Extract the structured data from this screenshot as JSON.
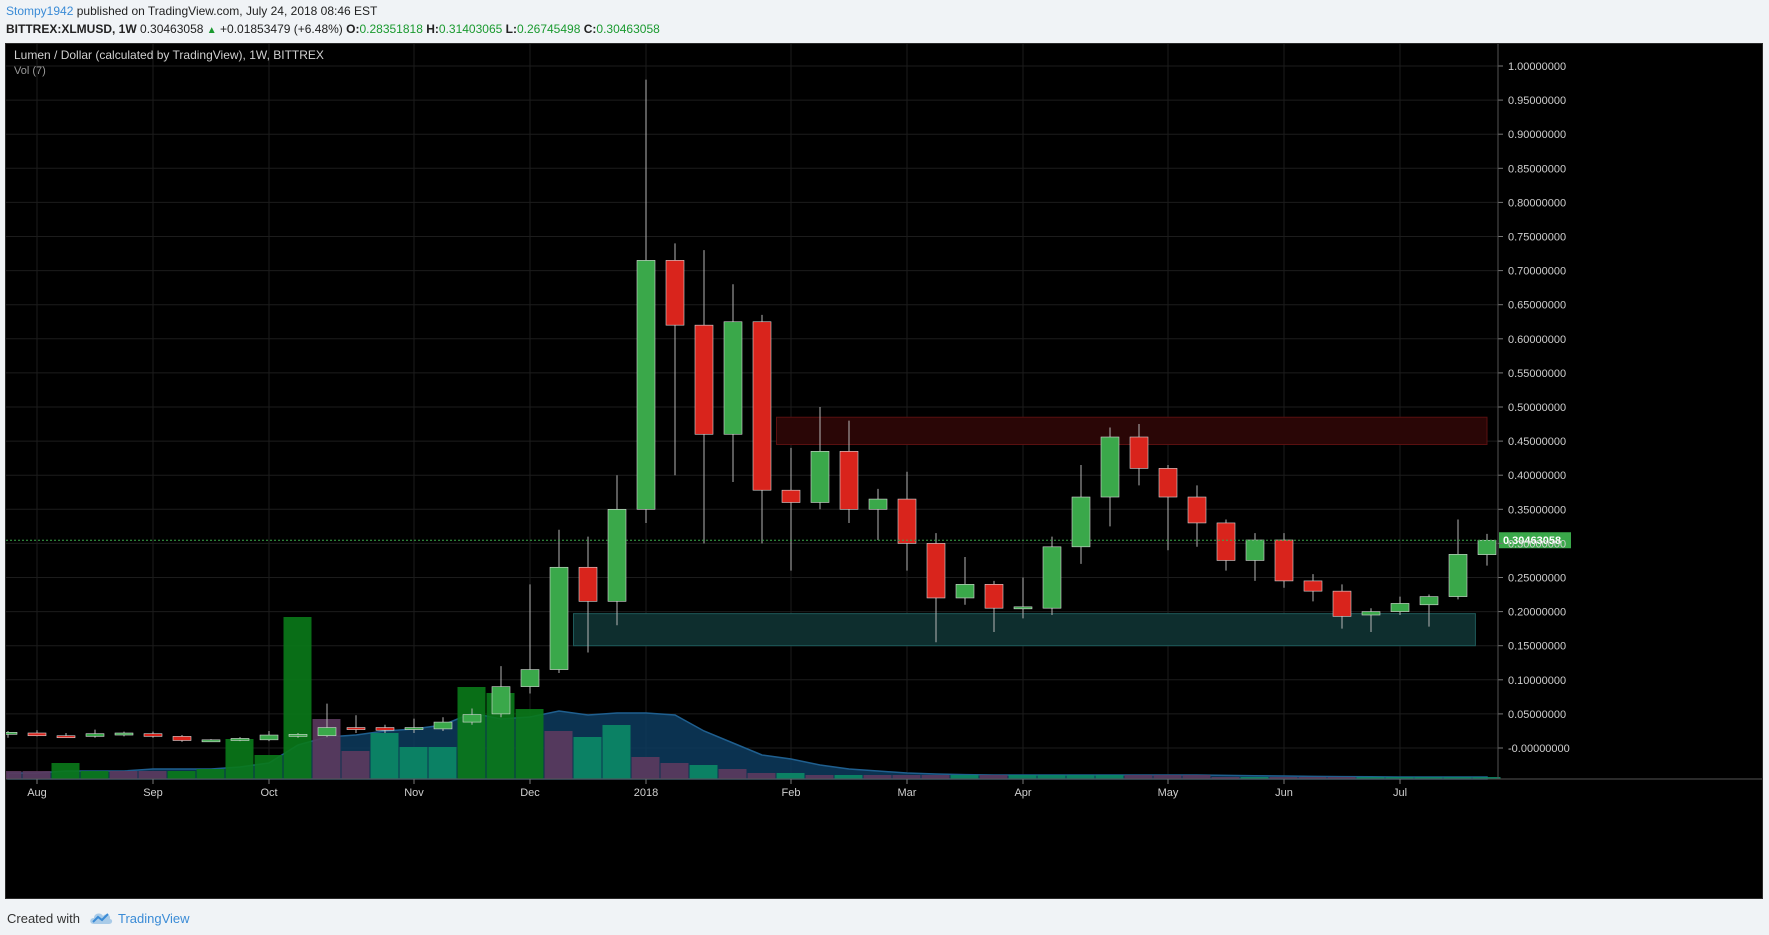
{
  "header": {
    "author": "Stompy1942",
    "published_text": "published on TradingView.com, July 24, 2018 08:46 EST",
    "symbol": "BITTREX:XLMUSD, 1W",
    "last": "0.30463058",
    "change": "+0.01853479 (+6.48%)",
    "o_label": "O:",
    "o_value": "0.28351818",
    "h_label": "H:",
    "h_value": "0.31403065",
    "l_label": "L:",
    "l_value": "0.26745498",
    "c_label": "C:",
    "c_value": "0.30463058"
  },
  "footer": {
    "created_with": "Created with",
    "brand": "TradingView"
  },
  "colors": {
    "up": "#3aa84a",
    "down": "#d9241c",
    "vol_up": "#0a7a1a",
    "vol_down": "#5c3a5e",
    "vol_teal": "#0b8a66",
    "ma_fill": "#0d3b5e",
    "support_zone": "#0e2e2e",
    "resistance_zone": "#2a0606",
    "last_price_tag": "#3aa84a"
  },
  "chart_data": {
    "type": "candlestick",
    "title": "Lumen / Dollar (calculated by TradingView), 1W, BITTREX",
    "indicator_label": "Vol (7)",
    "last_price_label": "0.30463058",
    "last_price": 0.30463058,
    "ylim": [
      -0.05,
      1.05
    ],
    "y_ticks": [
      "1.00000000",
      "0.95000000",
      "0.90000000",
      "0.85000000",
      "0.80000000",
      "0.75000000",
      "0.70000000",
      "0.65000000",
      "0.60000000",
      "0.55000000",
      "0.50000000",
      "0.45000000",
      "0.40000000",
      "0.35000000",
      "0.30000000",
      "0.25000000",
      "0.20000000",
      "0.15000000",
      "0.10000000",
      "0.05000000",
      "-0.00000000"
    ],
    "x_ticks": [
      {
        "label": "Aug",
        "week": 1
      },
      {
        "label": "Sep",
        "week": 5
      },
      {
        "label": "Oct",
        "week": 9
      },
      {
        "label": "Nov",
        "week": 14
      },
      {
        "label": "Dec",
        "week": 18
      },
      {
        "label": "2018",
        "week": 22
      },
      {
        "label": "Feb",
        "week": 27
      },
      {
        "label": "Mar",
        "week": 31
      },
      {
        "label": "Apr",
        "week": 35
      },
      {
        "label": "May",
        "week": 40
      },
      {
        "label": "Jun",
        "week": 44
      },
      {
        "label": "Jul",
        "week": 48
      }
    ],
    "zones": [
      {
        "name": "resistance",
        "from_week": 26.5,
        "to_week": 51,
        "low": 0.445,
        "high": 0.485
      },
      {
        "name": "support",
        "from_week": 19.5,
        "to_week": 50.6,
        "low": 0.15,
        "high": 0.197
      }
    ],
    "candles": [
      {
        "o": 0.02,
        "h": 0.025,
        "l": 0.015,
        "c": 0.023
      },
      {
        "o": 0.022,
        "h": 0.026,
        "l": 0.017,
        "c": 0.018
      },
      {
        "o": 0.018,
        "h": 0.022,
        "l": 0.015,
        "c": 0.017
      },
      {
        "o": 0.017,
        "h": 0.027,
        "l": 0.015,
        "c": 0.021
      },
      {
        "o": 0.019,
        "h": 0.024,
        "l": 0.017,
        "c": 0.022
      },
      {
        "o": 0.021,
        "h": 0.024,
        "l": 0.015,
        "c": 0.017
      },
      {
        "o": 0.017,
        "h": 0.019,
        "l": 0.009,
        "c": 0.011
      },
      {
        "o": 0.011,
        "h": 0.013,
        "l": 0.01,
        "c": 0.012
      },
      {
        "o": 0.012,
        "h": 0.016,
        "l": 0.01,
        "c": 0.014
      },
      {
        "o": 0.012,
        "h": 0.025,
        "l": 0.01,
        "c": 0.019
      },
      {
        "o": 0.017,
        "h": 0.022,
        "l": 0.015,
        "c": 0.02
      },
      {
        "o": 0.018,
        "h": 0.065,
        "l": 0.016,
        "c": 0.03
      },
      {
        "o": 0.03,
        "h": 0.048,
        "l": 0.022,
        "c": 0.027
      },
      {
        "o": 0.03,
        "h": 0.034,
        "l": 0.022,
        "c": 0.026
      },
      {
        "o": 0.027,
        "h": 0.043,
        "l": 0.022,
        "c": 0.03
      },
      {
        "o": 0.028,
        "h": 0.045,
        "l": 0.025,
        "c": 0.038
      },
      {
        "o": 0.038,
        "h": 0.058,
        "l": 0.034,
        "c": 0.049
      },
      {
        "o": 0.05,
        "h": 0.12,
        "l": 0.045,
        "c": 0.09
      },
      {
        "o": 0.09,
        "h": 0.24,
        "l": 0.08,
        "c": 0.115
      },
      {
        "o": 0.115,
        "h": 0.32,
        "l": 0.11,
        "c": 0.265
      },
      {
        "o": 0.265,
        "h": 0.31,
        "l": 0.14,
        "c": 0.215
      },
      {
        "o": 0.215,
        "h": 0.4,
        "l": 0.18,
        "c": 0.35
      },
      {
        "o": 0.35,
        "h": 0.98,
        "l": 0.33,
        "c": 0.715
      },
      {
        "o": 0.715,
        "h": 0.74,
        "l": 0.4,
        "c": 0.62
      },
      {
        "o": 0.62,
        "h": 0.73,
        "l": 0.3,
        "c": 0.46
      },
      {
        "o": 0.46,
        "h": 0.68,
        "l": 0.39,
        "c": 0.625
      },
      {
        "o": 0.625,
        "h": 0.635,
        "l": 0.3,
        "c": 0.378
      },
      {
        "o": 0.378,
        "h": 0.44,
        "l": 0.26,
        "c": 0.36
      },
      {
        "o": 0.36,
        "h": 0.5,
        "l": 0.35,
        "c": 0.435
      },
      {
        "o": 0.435,
        "h": 0.48,
        "l": 0.33,
        "c": 0.35
      },
      {
        "o": 0.35,
        "h": 0.38,
        "l": 0.305,
        "c": 0.365
      },
      {
        "o": 0.365,
        "h": 0.405,
        "l": 0.26,
        "c": 0.3
      },
      {
        "o": 0.3,
        "h": 0.315,
        "l": 0.155,
        "c": 0.22
      },
      {
        "o": 0.22,
        "h": 0.28,
        "l": 0.21,
        "c": 0.24
      },
      {
        "o": 0.24,
        "h": 0.245,
        "l": 0.17,
        "c": 0.205
      },
      {
        "o": 0.205,
        "h": 0.25,
        "l": 0.19,
        "c": 0.207
      },
      {
        "o": 0.205,
        "h": 0.31,
        "l": 0.195,
        "c": 0.295
      },
      {
        "o": 0.295,
        "h": 0.415,
        "l": 0.27,
        "c": 0.368
      },
      {
        "o": 0.368,
        "h": 0.47,
        "l": 0.325,
        "c": 0.456
      },
      {
        "o": 0.456,
        "h": 0.475,
        "l": 0.385,
        "c": 0.41
      },
      {
        "o": 0.41,
        "h": 0.415,
        "l": 0.29,
        "c": 0.368
      },
      {
        "o": 0.368,
        "h": 0.385,
        "l": 0.295,
        "c": 0.33
      },
      {
        "o": 0.33,
        "h": 0.335,
        "l": 0.26,
        "c": 0.275
      },
      {
        "o": 0.275,
        "h": 0.315,
        "l": 0.245,
        "c": 0.305
      },
      {
        "o": 0.305,
        "h": 0.315,
        "l": 0.235,
        "c": 0.245
      },
      {
        "o": 0.245,
        "h": 0.255,
        "l": 0.215,
        "c": 0.23
      },
      {
        "o": 0.23,
        "h": 0.24,
        "l": 0.175,
        "c": 0.193
      },
      {
        "o": 0.195,
        "h": 0.205,
        "l": 0.17,
        "c": 0.2
      },
      {
        "o": 0.2,
        "h": 0.222,
        "l": 0.195,
        "c": 0.212
      },
      {
        "o": 0.21,
        "h": 0.225,
        "l": 0.178,
        "c": 0.222
      },
      {
        "o": 0.222,
        "h": 0.335,
        "l": 0.218,
        "c": 0.284
      },
      {
        "o": 0.2835,
        "h": 0.314,
        "l": 0.2675,
        "c": 0.3046
      }
    ],
    "volume_scale_max": 100,
    "volume": [
      {
        "v": 4,
        "dir": "down"
      },
      {
        "v": 4,
        "dir": "down"
      },
      {
        "v": 8,
        "dir": "up"
      },
      {
        "v": 4,
        "dir": "up"
      },
      {
        "v": 4,
        "dir": "down"
      },
      {
        "v": 4,
        "dir": "down"
      },
      {
        "v": 4,
        "dir": "up"
      },
      {
        "v": 5,
        "dir": "up"
      },
      {
        "v": 20,
        "dir": "up"
      },
      {
        "v": 12,
        "dir": "up"
      },
      {
        "v": 81,
        "dir": "up"
      },
      {
        "v": 30,
        "dir": "down"
      },
      {
        "v": 14,
        "dir": "down"
      },
      {
        "v": 23,
        "dir": "teal"
      },
      {
        "v": 16,
        "dir": "teal"
      },
      {
        "v": 16,
        "dir": "teal"
      },
      {
        "v": 46,
        "dir": "up"
      },
      {
        "v": 43,
        "dir": "up"
      },
      {
        "v": 35,
        "dir": "up"
      },
      {
        "v": 24,
        "dir": "down"
      },
      {
        "v": 21,
        "dir": "teal"
      },
      {
        "v": 27,
        "dir": "teal"
      },
      {
        "v": 11,
        "dir": "down"
      },
      {
        "v": 8,
        "dir": "down"
      },
      {
        "v": 7,
        "dir": "teal"
      },
      {
        "v": 5,
        "dir": "down"
      },
      {
        "v": 3,
        "dir": "down"
      },
      {
        "v": 3,
        "dir": "teal"
      },
      {
        "v": 2,
        "dir": "down"
      },
      {
        "v": 2,
        "dir": "teal"
      },
      {
        "v": 2,
        "dir": "down"
      },
      {
        "v": 2,
        "dir": "down"
      },
      {
        "v": 2,
        "dir": "down"
      },
      {
        "v": 2,
        "dir": "teal"
      },
      {
        "v": 2,
        "dir": "down"
      },
      {
        "v": 2,
        "dir": "teal"
      },
      {
        "v": 2,
        "dir": "teal"
      },
      {
        "v": 2,
        "dir": "teal"
      },
      {
        "v": 2,
        "dir": "teal"
      },
      {
        "v": 2,
        "dir": "down"
      },
      {
        "v": 2,
        "dir": "down"
      },
      {
        "v": 2,
        "dir": "down"
      },
      {
        "v": 1,
        "dir": "down"
      },
      {
        "v": 1,
        "dir": "teal"
      },
      {
        "v": 1,
        "dir": "down"
      },
      {
        "v": 1,
        "dir": "down"
      },
      {
        "v": 1,
        "dir": "down"
      },
      {
        "v": 1,
        "dir": "teal"
      },
      {
        "v": 1,
        "dir": "teal"
      },
      {
        "v": 1,
        "dir": "teal"
      },
      {
        "v": 1,
        "dir": "teal"
      },
      {
        "v": 1,
        "dir": "teal"
      }
    ],
    "volume_ma": [
      3,
      3,
      4,
      4,
      4,
      5,
      5,
      5,
      6,
      8,
      17,
      21,
      22,
      24,
      25,
      27,
      33,
      30,
      31,
      34,
      32,
      33,
      33,
      32,
      24,
      18,
      12,
      10,
      7,
      5,
      4,
      3,
      2.5,
      2.2,
      2,
      2,
      2,
      2,
      2,
      2,
      2,
      2,
      1.8,
      1.6,
      1.5,
      1.3,
      1.2,
      1.1,
      1,
      1,
      1,
      1
    ]
  }
}
